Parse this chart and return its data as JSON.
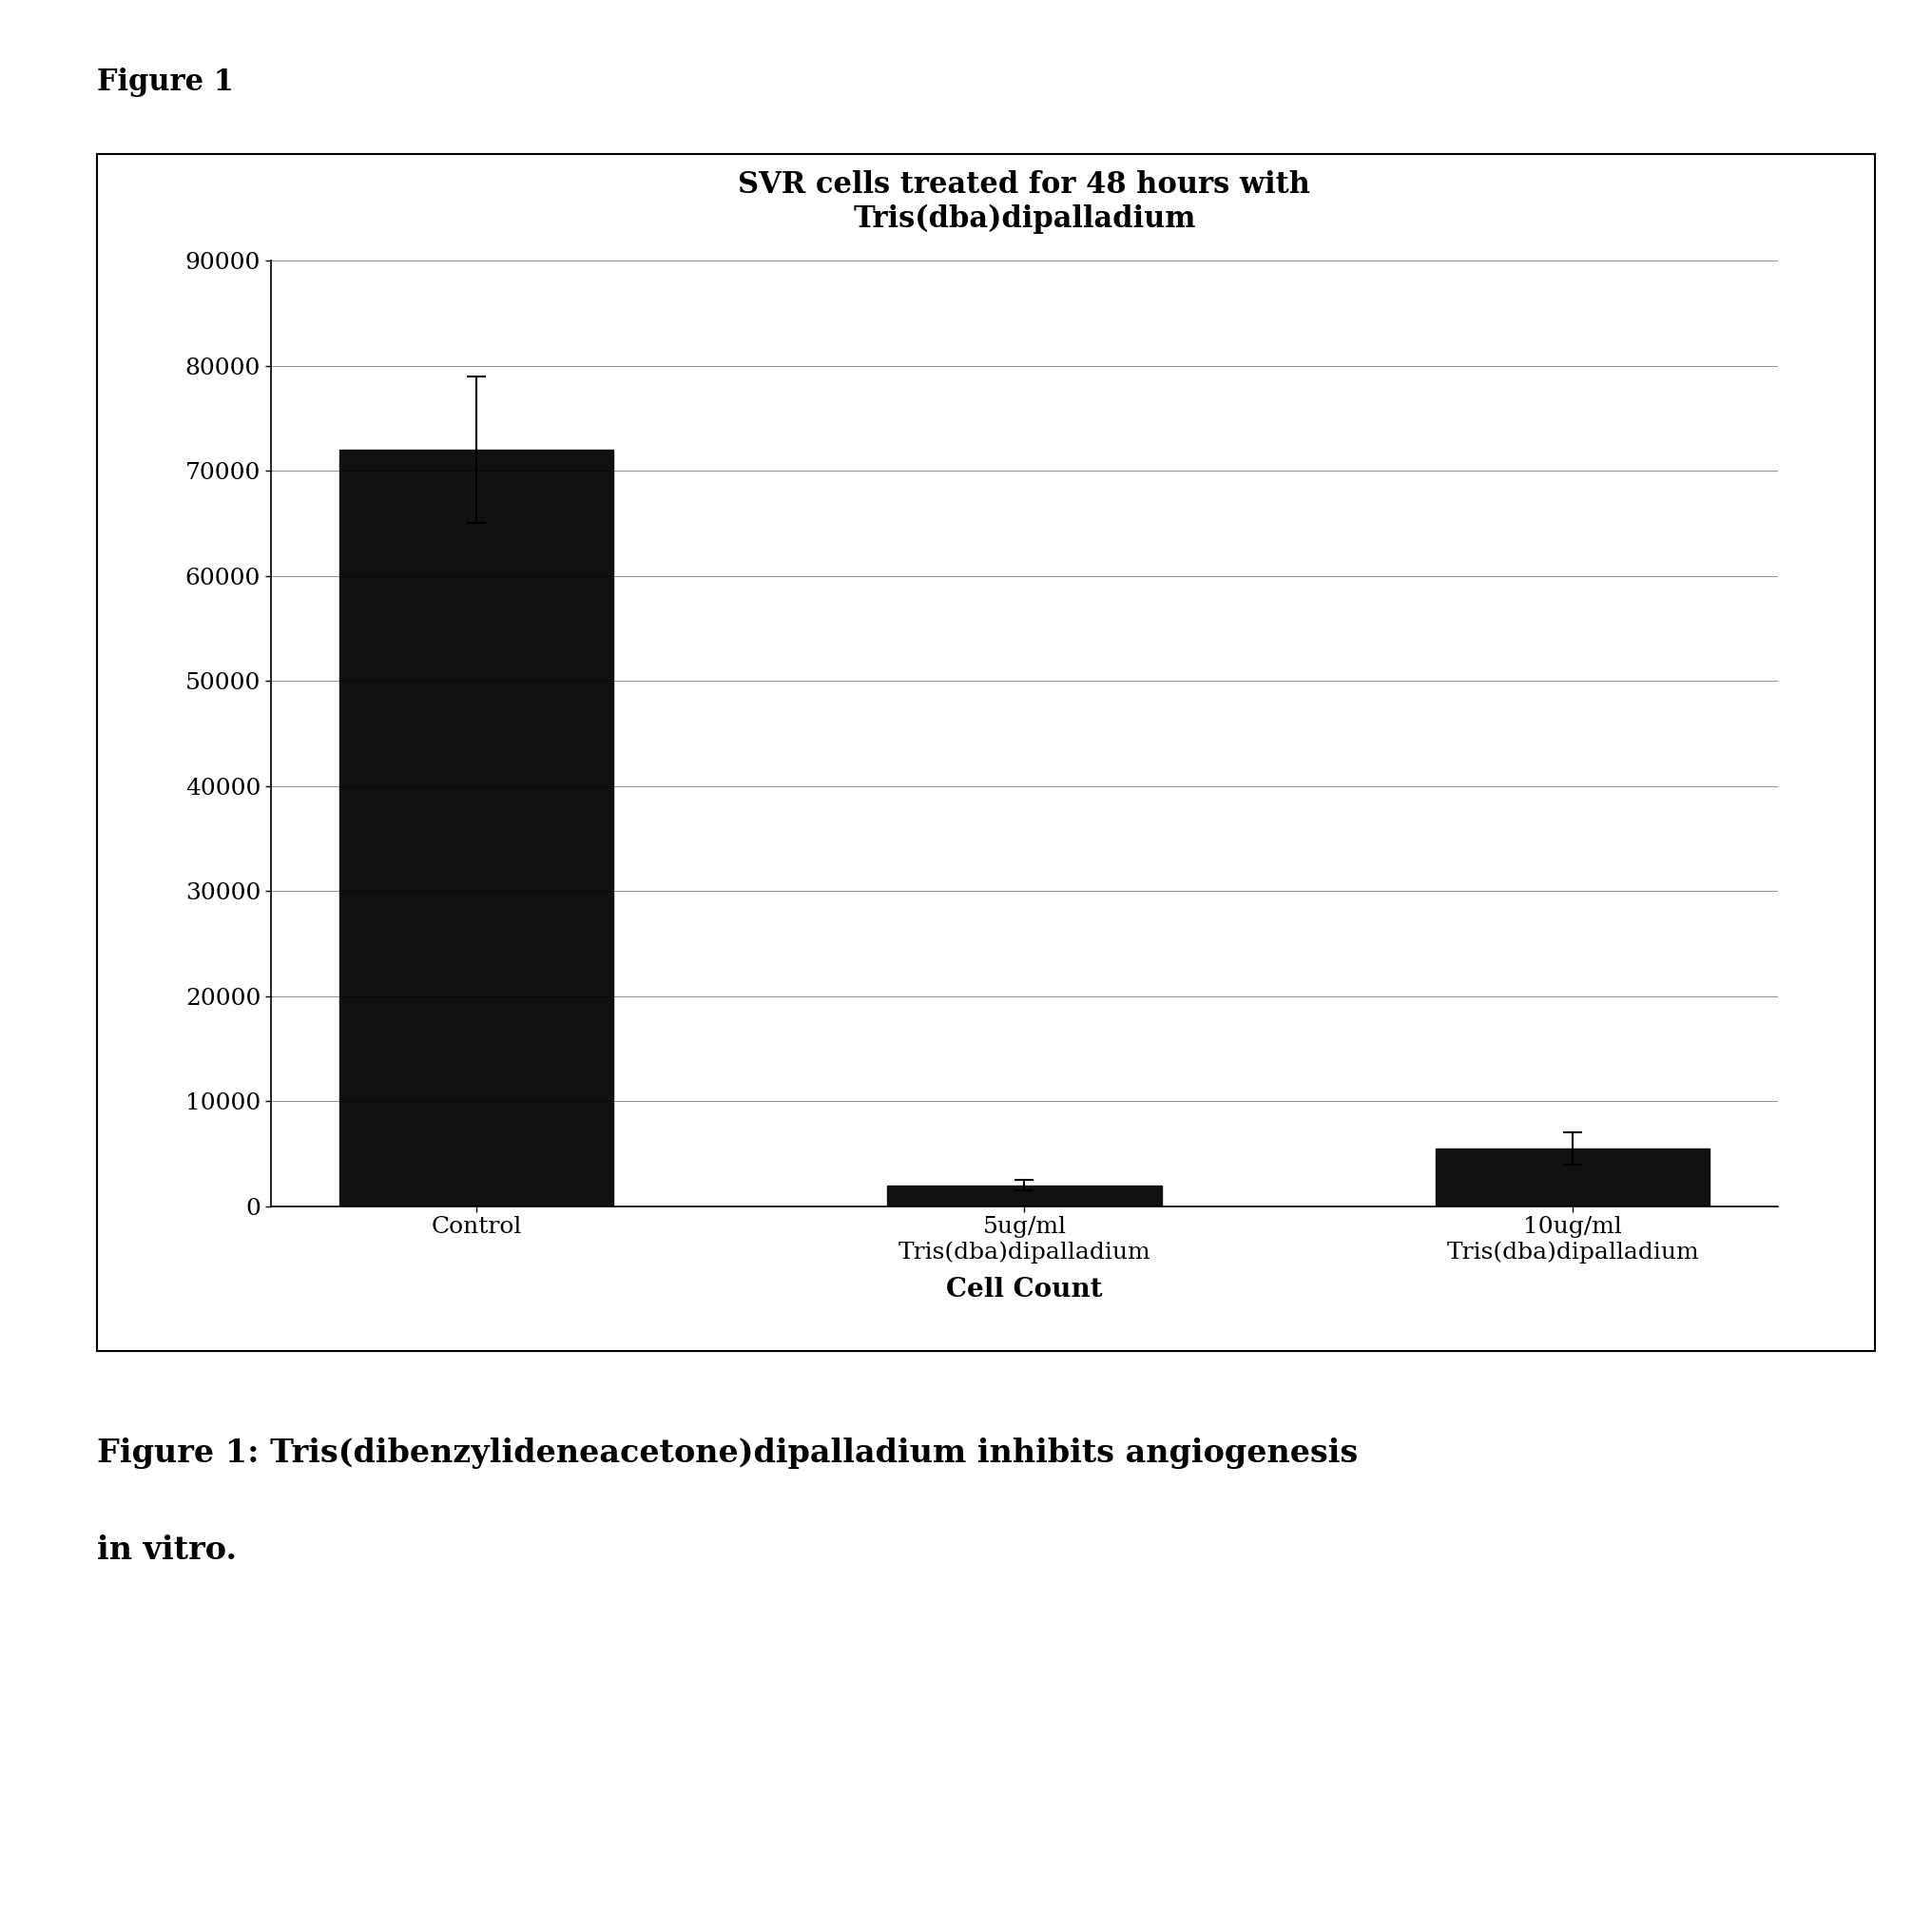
{
  "title": "SVR cells treated for 48 hours with\nTris(dba)dipalladium",
  "categories": [
    "Control",
    "5ug/ml\nTris(dba)dipalladium",
    "10ug/ml\nTris(dba)dipalladium"
  ],
  "values": [
    72000,
    2000,
    5500
  ],
  "errors": [
    7000,
    500,
    1500
  ],
  "bar_color": "#111111",
  "xlabel": "Cell Count",
  "ylabel": "",
  "ylim": [
    0,
    90000
  ],
  "yticks": [
    0,
    10000,
    20000,
    30000,
    40000,
    50000,
    60000,
    70000,
    80000,
    90000
  ],
  "title_fontsize": 22,
  "xlabel_fontsize": 20,
  "tick_fontsize": 18,
  "figure_label": "Figure 1",
  "caption_line1": "Figure 1: Tris(dibenzylideneacetone)dipalladium inhibits angiogenesis",
  "caption_line2": "in vitro.",
  "background_color": "#ffffff",
  "bar_width": 0.5,
  "fig_label_fontsize": 22,
  "caption_fontsize": 24
}
